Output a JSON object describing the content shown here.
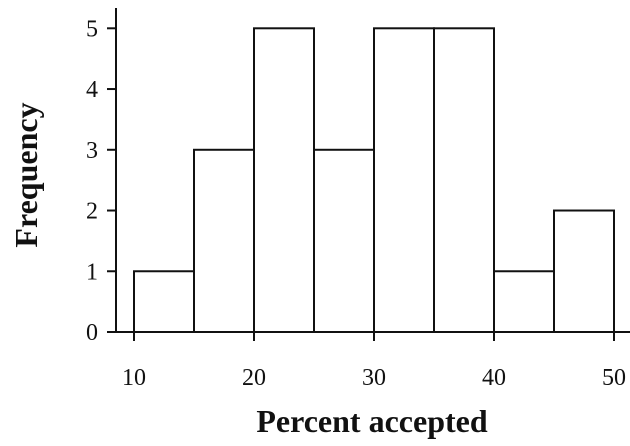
{
  "chart_data": {
    "type": "bar",
    "histogram": true,
    "bins": [
      {
        "from": 10,
        "to": 15,
        "value": 1
      },
      {
        "from": 15,
        "to": 20,
        "value": 3
      },
      {
        "from": 20,
        "to": 25,
        "value": 5
      },
      {
        "from": 25,
        "to": 30,
        "value": 3
      },
      {
        "from": 30,
        "to": 35,
        "value": 5
      },
      {
        "from": 35,
        "to": 40,
        "value": 5
      },
      {
        "from": 40,
        "to": 45,
        "value": 1
      },
      {
        "from": 45,
        "to": 50,
        "value": 2
      }
    ],
    "xlabel": "Percent accepted",
    "ylabel": "Frequency",
    "xticks": [
      10,
      20,
      30,
      40,
      50
    ],
    "yticks": [
      0,
      1,
      2,
      3,
      4,
      5
    ],
    "xlim": [
      8.5,
      51.5
    ],
    "ylim": [
      0,
      5.4
    ],
    "grid": false,
    "colors": {
      "bar_fill": "#ffffff",
      "bar_stroke": "#111111",
      "axis": "#111111"
    }
  }
}
